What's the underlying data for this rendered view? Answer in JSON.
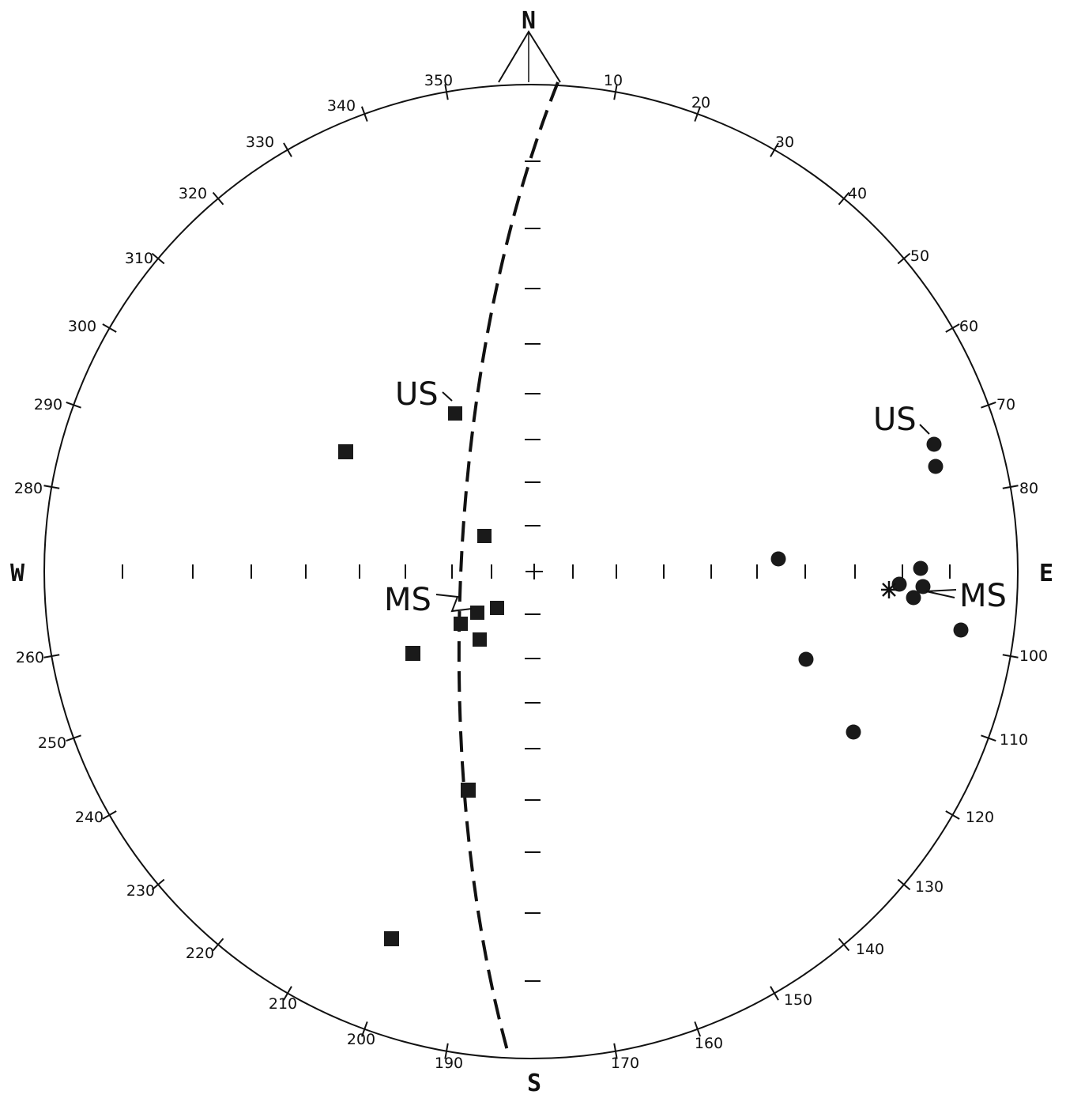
{
  "cardinals": {
    "north": "N",
    "east": "E",
    "south": "S",
    "west": "W"
  },
  "azimuth_labels": [
    "10",
    "20",
    "30",
    "40",
    "50",
    "60",
    "70",
    "80",
    "100",
    "110",
    "120",
    "130",
    "140",
    "150",
    "160",
    "170",
    "190",
    "200",
    "210",
    "220",
    "230",
    "240",
    "250",
    "260",
    "280",
    "290",
    "300",
    "310",
    "320",
    "330",
    "340",
    "350"
  ],
  "annotations": {
    "us_squares": "US",
    "ms_squares": "MS",
    "us_circles": "US",
    "ms_circles": "MS"
  },
  "colors": {
    "ink": "#111111",
    "background": "#ffffff"
  }
}
